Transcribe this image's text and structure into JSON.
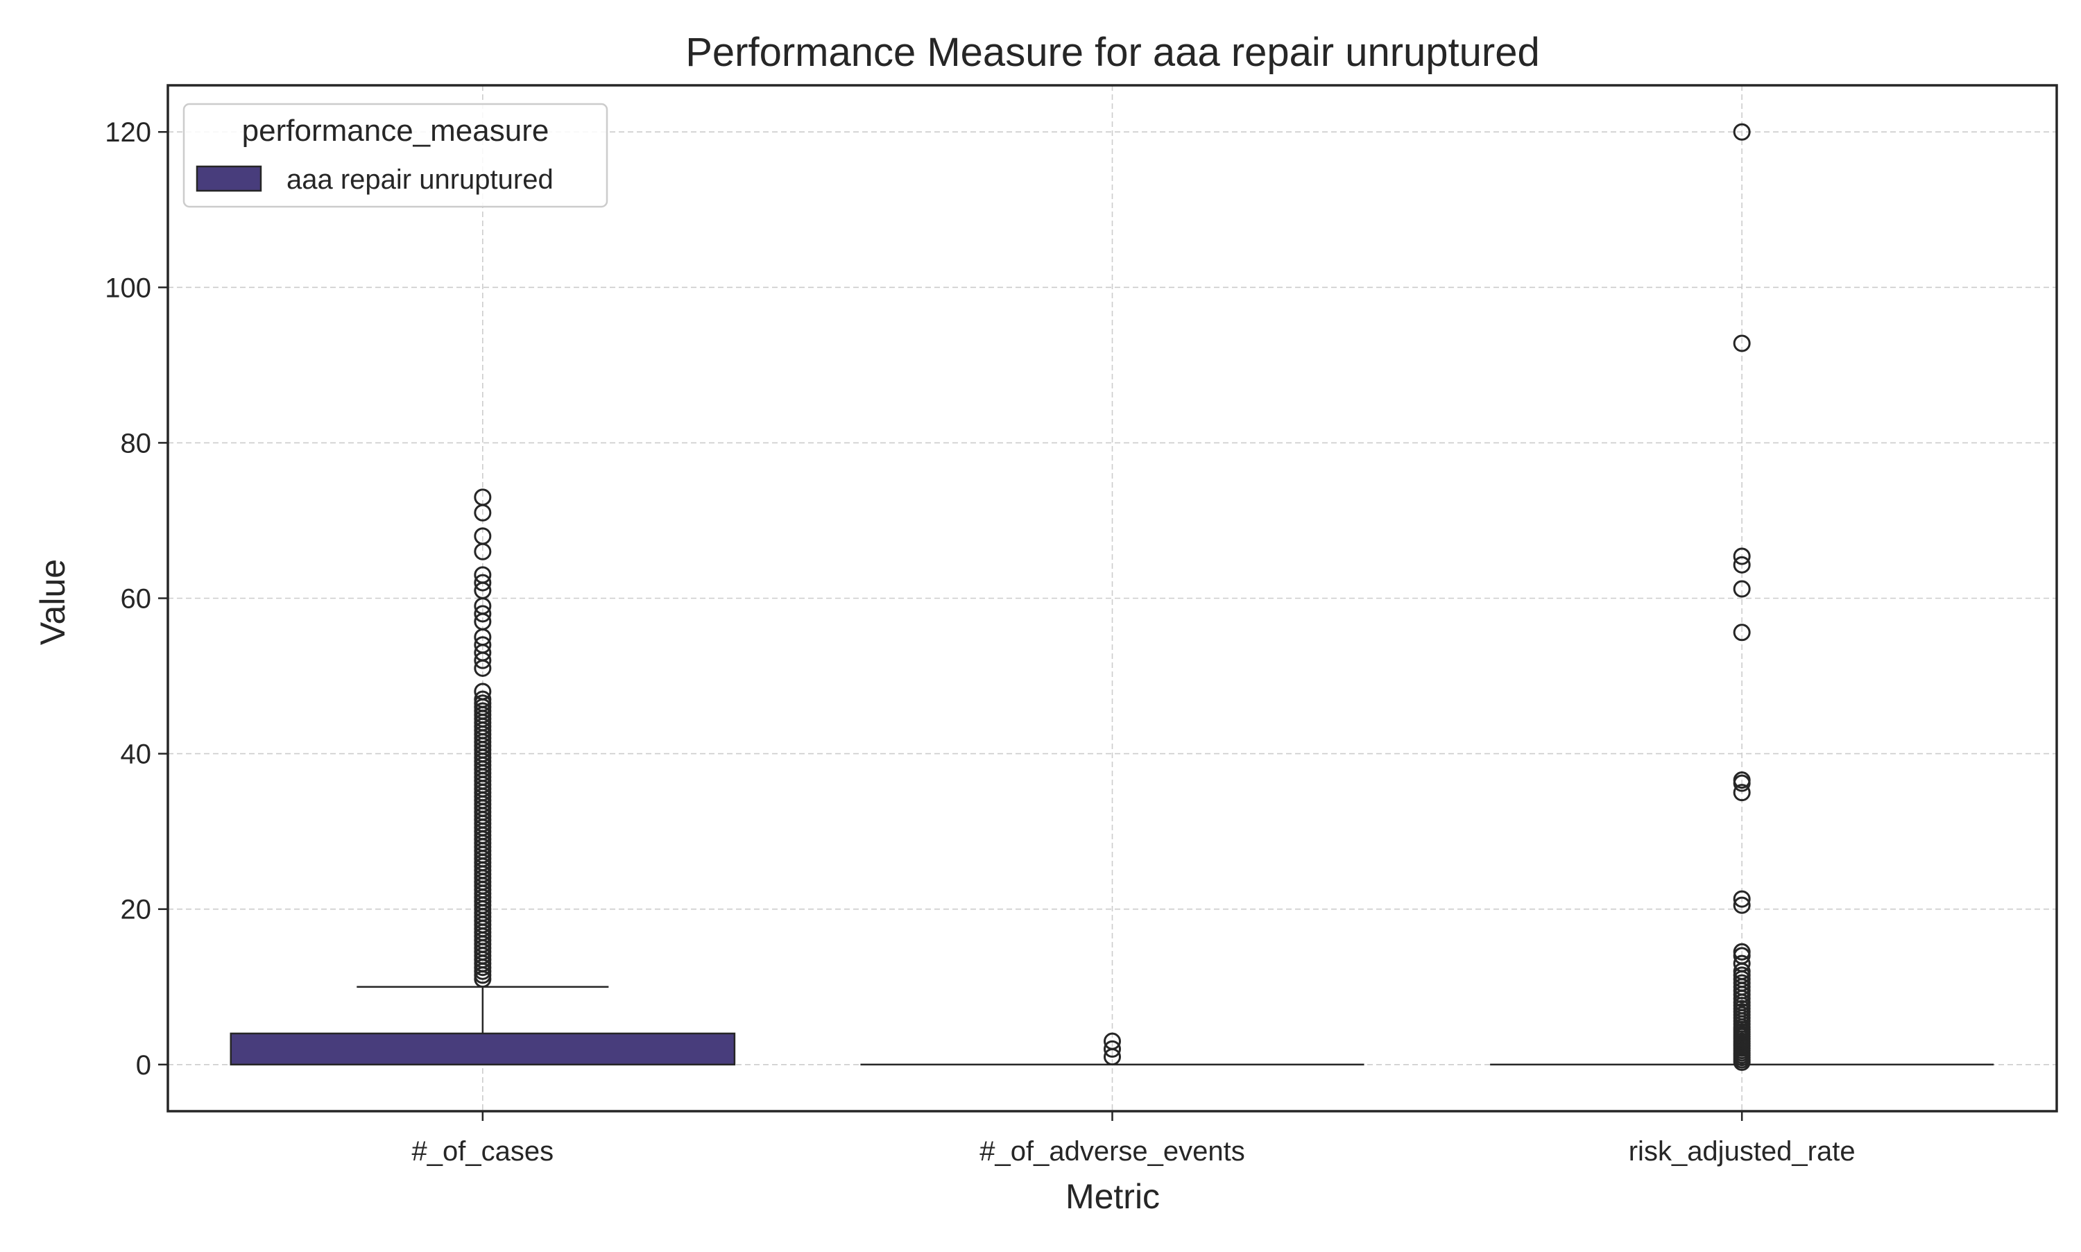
{
  "chart_data": {
    "type": "box",
    "title": "Performance Measure for aaa repair unruptured",
    "xlabel": "Metric",
    "ylabel": "Value",
    "ylim": [
      -6,
      126
    ],
    "yticks": [
      0,
      20,
      40,
      60,
      80,
      100,
      120
    ],
    "grid": true,
    "legend": {
      "title": "performance_measure",
      "placement": "top-left",
      "entries": [
        {
          "label": "aaa repair unruptured",
          "color": "#483d7c"
        }
      ]
    },
    "categories": [
      "#_of_cases",
      "#_of_adverse_events",
      "risk_adjusted_rate"
    ],
    "series": [
      {
        "name": "aaa repair unruptured",
        "color": "#483d7c",
        "boxes": [
          {
            "category": "#_of_cases",
            "q1": 0,
            "median": 0,
            "q3": 4,
            "whisker_low": 0,
            "whisker_high": 10,
            "outliers": [
              11,
              11.5,
              12,
              12.5,
              13,
              13.5,
              14,
              14.5,
              15,
              15.5,
              16,
              16.5,
              17,
              17.5,
              18,
              18.5,
              19,
              19.5,
              20,
              20.5,
              21,
              21.5,
              22,
              22.5,
              23,
              23.5,
              24,
              24.5,
              25,
              25.5,
              26,
              26.5,
              27,
              27.5,
              28,
              28.5,
              29,
              29.5,
              30,
              30.5,
              31,
              31.5,
              32,
              32.5,
              33,
              33.5,
              34,
              34.5,
              35,
              35.5,
              36,
              36.5,
              37,
              37.5,
              38,
              38.5,
              39,
              39.5,
              40,
              40.5,
              41,
              41.5,
              42,
              42.5,
              43,
              43.5,
              44,
              44.5,
              45,
              45.5,
              46,
              46.5,
              47,
              48,
              51,
              52,
              53,
              54,
              55,
              57,
              58,
              59,
              61,
              62,
              63,
              66,
              68,
              71,
              73
            ]
          },
          {
            "category": "#_of_adverse_events",
            "q1": 0,
            "median": 0,
            "q3": 0,
            "whisker_low": 0,
            "whisker_high": 0,
            "outliers": [
              1,
              2,
              3
            ]
          },
          {
            "category": "risk_adjusted_rate",
            "q1": 0,
            "median": 0,
            "q3": 0,
            "whisker_low": 0,
            "whisker_high": 0,
            "outliers": [
              0.3,
              0.6,
              0.9,
              1.2,
              1.5,
              1.8,
              2.1,
              2.4,
              2.7,
              3.0,
              3.3,
              3.6,
              3.9,
              4.2,
              4.5,
              4.8,
              5.2,
              5.6,
              6.0,
              6.4,
              6.8,
              7.2,
              7.6,
              8.0,
              8.5,
              9.0,
              9.5,
              10.0,
              10.5,
              11.0,
              11.5,
              12.0,
              13.0,
              14.0,
              14.5,
              20.5,
              21.3,
              35.0,
              36.2,
              36.6,
              55.6,
              61.2,
              64.3,
              65.4,
              92.8,
              120.0
            ]
          }
        ]
      }
    ]
  }
}
